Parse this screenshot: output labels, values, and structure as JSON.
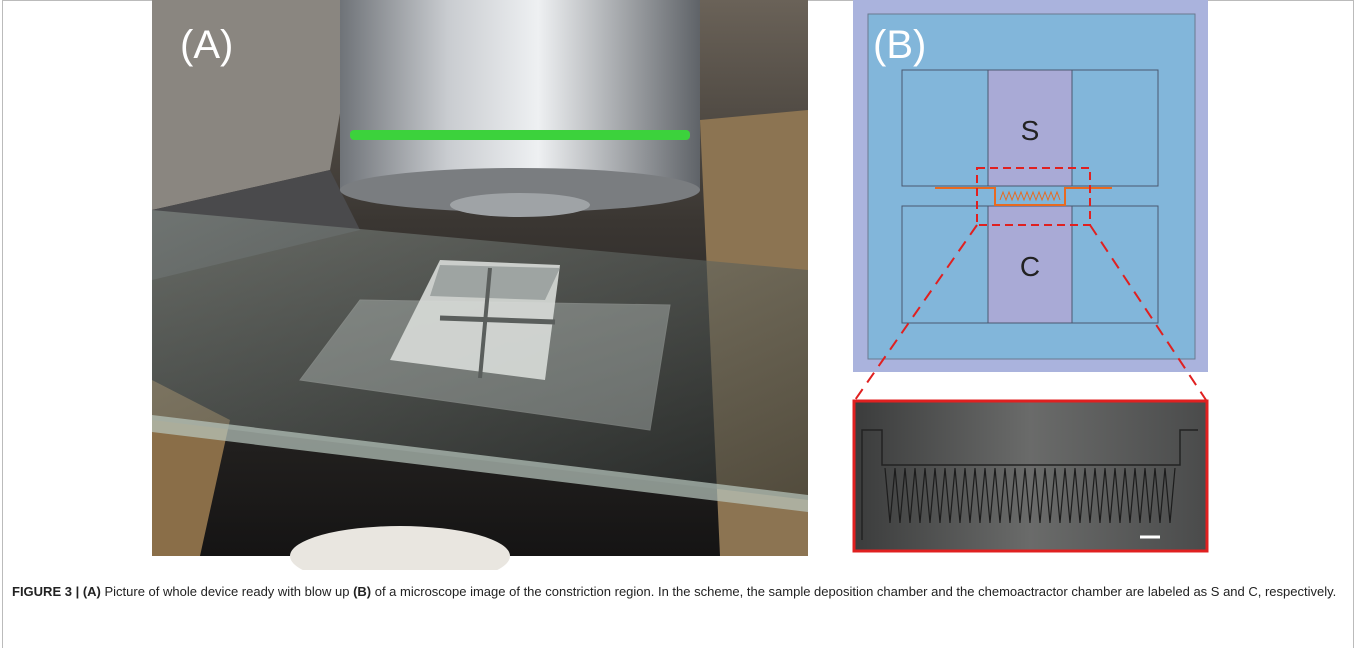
{
  "figure": {
    "panels": {
      "a_label": "(A)",
      "b_label": "(B)",
      "sample_label": "S",
      "chemo_label": "C"
    },
    "caption": {
      "figure_id": "FIGURE 3 | (A)",
      "text_1": " Picture of whole device ready with blow up ",
      "ref_b": "(B)",
      "text_2": " of a microscope image of the constriction region. In the scheme, the sample deposition chamber and the chemoactractor chamber are labeled as S and C, respectively."
    }
  }
}
